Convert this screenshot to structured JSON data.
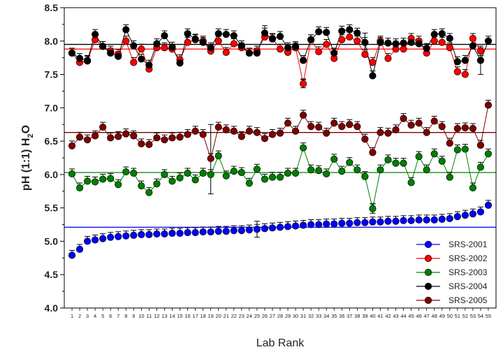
{
  "chart_data": {
    "type": "scatter",
    "title": "",
    "xlabel": "Lab Rank",
    "ylabel": {
      "main": "pH (1:1) H",
      "sub": "2",
      "tail": "O"
    },
    "xlim": [
      0,
      56
    ],
    "ylim": [
      4.0,
      8.5
    ],
    "yticks": [
      "4.0",
      "4.5",
      "5.0",
      "5.5",
      "6.0",
      "6.5",
      "7.0",
      "7.5",
      "8.0",
      "8.5"
    ],
    "x": [
      1,
      2,
      3,
      4,
      5,
      6,
      7,
      8,
      9,
      10,
      11,
      12,
      13,
      14,
      15,
      16,
      17,
      18,
      19,
      20,
      21,
      22,
      23,
      24,
      25,
      26,
      27,
      28,
      29,
      30,
      31,
      32,
      33,
      34,
      35,
      36,
      37,
      38,
      39,
      40,
      41,
      42,
      43,
      44,
      45,
      46,
      47,
      48,
      49,
      50,
      51,
      52,
      53,
      54,
      55
    ],
    "legend_position": "bottom-right",
    "grid": false,
    "series": [
      {
        "name": "SRS-2001",
        "color": "#0000ff",
        "mean": 5.21,
        "line": false,
        "values": [
          4.79,
          4.88,
          5.0,
          5.02,
          5.04,
          5.06,
          5.07,
          5.08,
          5.09,
          5.1,
          5.1,
          5.11,
          5.11,
          5.12,
          5.12,
          5.13,
          5.13,
          5.14,
          5.14,
          5.15,
          5.15,
          5.16,
          5.16,
          5.17,
          5.18,
          5.19,
          5.2,
          5.21,
          5.22,
          5.23,
          5.24,
          5.25,
          5.25,
          5.26,
          5.26,
          5.27,
          5.27,
          5.28,
          5.28,
          5.29,
          5.29,
          5.3,
          5.3,
          5.31,
          5.31,
          5.32,
          5.32,
          5.32,
          5.33,
          5.34,
          5.37,
          5.39,
          5.41,
          5.44,
          5.54
        ]
      },
      {
        "name": "SRS-2002",
        "color": "#ff0000",
        "mean": 7.88,
        "line": true,
        "values": [
          7.82,
          7.68,
          7.7,
          8.02,
          7.92,
          7.85,
          7.8,
          8.0,
          7.68,
          7.88,
          7.58,
          7.9,
          7.9,
          7.88,
          7.72,
          7.98,
          8.02,
          8.0,
          7.85,
          8.0,
          7.83,
          7.96,
          7.9,
          7.82,
          7.85,
          8.06,
          8.04,
          7.88,
          7.83,
          7.9,
          7.36,
          8.02,
          7.84,
          7.95,
          7.74,
          8.02,
          8.06,
          8.0,
          7.8,
          7.68,
          8.0,
          7.74,
          7.88,
          7.88,
          8.04,
          8.0,
          7.82,
          8.0,
          7.98,
          7.9,
          7.54,
          7.5,
          8.04,
          7.85,
          null
        ]
      },
      {
        "name": "SRS-2003",
        "color": "#008000",
        "mean": 6.03,
        "line": true,
        "values": [
          6.01,
          5.8,
          5.9,
          5.89,
          5.93,
          5.94,
          5.85,
          6.04,
          6.02,
          5.83,
          5.73,
          5.86,
          6.0,
          5.9,
          5.95,
          6.02,
          5.92,
          6.02,
          6.0,
          6.28,
          5.98,
          6.05,
          6.03,
          5.87,
          6.08,
          5.93,
          5.96,
          5.96,
          6.02,
          6.02,
          6.4,
          6.07,
          6.06,
          6.01,
          6.23,
          6.05,
          6.18,
          6.07,
          5.97,
          5.49,
          6.07,
          6.22,
          6.17,
          6.17,
          5.88,
          6.27,
          6.07,
          6.31,
          6.2,
          5.96,
          6.37,
          6.38,
          5.8,
          6.11,
          6.31
        ]
      },
      {
        "name": "SRS-2004",
        "color": "#000000",
        "mean": 7.95,
        "line": true,
        "values": [
          7.82,
          7.74,
          7.71,
          8.1,
          7.92,
          7.82,
          7.77,
          8.17,
          7.93,
          7.73,
          7.64,
          7.96,
          8.08,
          7.91,
          7.67,
          8.11,
          8.03,
          7.98,
          7.9,
          8.11,
          8.1,
          8.08,
          7.93,
          7.82,
          7.82,
          8.12,
          8.03,
          8.07,
          7.9,
          7.92,
          7.71,
          8.02,
          8.14,
          8.13,
          7.82,
          8.15,
          8.17,
          8.12,
          7.98,
          7.48,
          7.98,
          7.97,
          7.96,
          7.97,
          7.98,
          7.96,
          7.89,
          8.1,
          8.11,
          8.04,
          7.69,
          7.71,
          7.93,
          7.71,
          8.0
        ]
      },
      {
        "name": "SRS-2005",
        "color": "#7f0000",
        "mean": 6.63,
        "line": true,
        "values": [
          6.43,
          6.56,
          6.52,
          6.58,
          6.71,
          6.55,
          6.57,
          6.61,
          6.58,
          6.46,
          6.45,
          6.55,
          6.52,
          6.55,
          6.56,
          6.6,
          6.65,
          6.6,
          6.24,
          6.71,
          6.67,
          6.65,
          6.57,
          6.65,
          6.63,
          6.54,
          6.6,
          6.62,
          6.77,
          6.65,
          6.89,
          6.72,
          6.71,
          6.62,
          6.77,
          6.72,
          6.75,
          6.72,
          6.53,
          6.33,
          6.63,
          6.62,
          6.67,
          6.84,
          6.74,
          6.77,
          6.63,
          6.8,
          6.72,
          6.47,
          6.69,
          6.7,
          6.69,
          6.44,
          7.04
        ]
      }
    ],
    "error_bars": [
      {
        "series": "SRS-2001",
        "x": 25,
        "low": 5.06,
        "high": 5.3
      },
      {
        "series": "SRS-2004",
        "x": 26,
        "low": 8.03,
        "high": 8.23
      },
      {
        "series": "SRS-2004",
        "x": 39,
        "low": 7.83,
        "high": 8.12
      },
      {
        "series": "SRS-2004",
        "x": 54,
        "low": 7.5,
        "high": 7.9
      },
      {
        "series": "SRS-2005",
        "x": 19,
        "low": 5.71,
        "high": 6.75
      },
      {
        "series": "SRS-2003",
        "x": 40,
        "low": 5.42,
        "high": 5.56
      },
      {
        "series": "SRS-2002",
        "x": 31,
        "low": 7.3,
        "high": 7.42
      }
    ]
  }
}
